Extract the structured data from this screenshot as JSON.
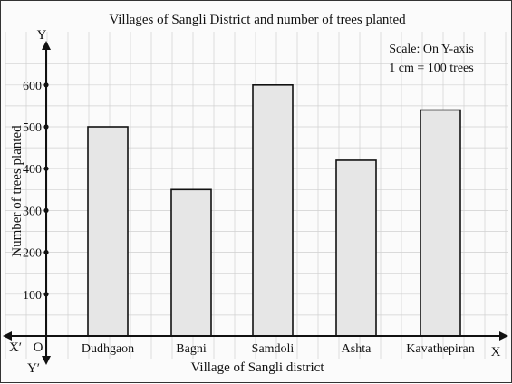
{
  "chart_data": {
    "type": "bar",
    "title": "Villages of Sangli District and number of trees planted",
    "xlabel": "Village of Sangli district",
    "ylabel": "Number of trees planted",
    "categories": [
      "Dudhgaon",
      "Bagni",
      "Samdoli",
      "Ashta",
      "Kavathepiran"
    ],
    "values": [
      500,
      350,
      600,
      420,
      540
    ],
    "yticks": [
      "100",
      "200",
      "300",
      "400",
      "500",
      "600"
    ],
    "ylim": [
      0,
      700
    ],
    "grid": true,
    "scale_note": [
      "Scale: On Y-axis",
      "1 cm = 100 trees"
    ],
    "axis_labels": {
      "x": "X",
      "x_prime": "X′",
      "y": "Y",
      "y_prime": "Y′",
      "origin": "O"
    },
    "colors": {
      "bar_fill": "#e6e6e6",
      "bar_stroke": "#111111",
      "grid": "#d0d0d0",
      "axis": "#111111"
    }
  }
}
